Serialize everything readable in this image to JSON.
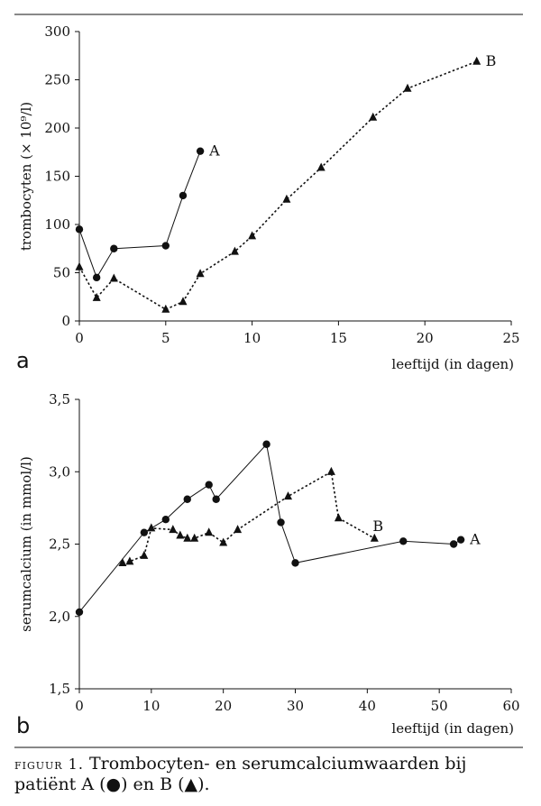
{
  "chart_data": [
    {
      "panel": "a",
      "type": "line",
      "xlabel": "leeftijd (in dagen)",
      "ylabel": "trombocyten (× 10⁹/l)",
      "xlim": [
        0,
        25
      ],
      "ylim": [
        0,
        300
      ],
      "xticks": [
        0,
        5,
        10,
        15,
        20,
        25
      ],
      "yticks": [
        0,
        50,
        100,
        150,
        200,
        250,
        300
      ],
      "series": [
        {
          "name": "A",
          "marker": "circle",
          "line": "solid",
          "x": [
            0,
            1,
            2,
            5,
            6,
            7
          ],
          "y": [
            95,
            45,
            75,
            78,
            130,
            176
          ]
        },
        {
          "name": "B",
          "marker": "triangle",
          "line": "dotted",
          "x": [
            0,
            1,
            2,
            5,
            6,
            7,
            9,
            10,
            12,
            14,
            17,
            19,
            23
          ],
          "y": [
            56,
            24,
            44,
            12,
            20,
            49,
            72,
            88,
            126,
            159,
            211,
            241,
            269
          ]
        }
      ]
    },
    {
      "panel": "b",
      "type": "line",
      "xlabel": "leeftijd (in dagen)",
      "ylabel": "serumcalcium (in mmol/l)",
      "xlim": [
        0,
        60
      ],
      "ylim": [
        1.5,
        3.5
      ],
      "xticks": [
        0,
        10,
        20,
        30,
        40,
        50,
        60
      ],
      "yticks": [
        1.5,
        2.0,
        2.5,
        3.0,
        3.5
      ],
      "ytick_labels": [
        "1,5",
        "2,0",
        "2,5",
        "3,0",
        "3,5"
      ],
      "series": [
        {
          "name": "A",
          "marker": "circle",
          "line": "solid",
          "x": [
            0,
            9,
            12,
            15,
            18,
            19,
            26,
            28,
            30,
            45,
            52,
            53
          ],
          "y": [
            2.03,
            2.58,
            2.67,
            2.81,
            2.91,
            2.81,
            3.19,
            2.65,
            2.37,
            2.52,
            2.5,
            2.53
          ]
        },
        {
          "name": "B",
          "marker": "triangle",
          "line": "dotted",
          "x": [
            6,
            7,
            9,
            10,
            13,
            14,
            15,
            16,
            18,
            20,
            22,
            29,
            35,
            36,
            41
          ],
          "y": [
            2.37,
            2.38,
            2.42,
            2.61,
            2.6,
            2.56,
            2.54,
            2.54,
            2.58,
            2.51,
            2.6,
            2.83,
            3.0,
            2.68,
            2.54
          ]
        }
      ]
    }
  ],
  "caption": {
    "label": "figuur 1.",
    "text": "Trombocyten- en serumcalciumwaarden bij patiënt A (●) en B (▲)."
  }
}
